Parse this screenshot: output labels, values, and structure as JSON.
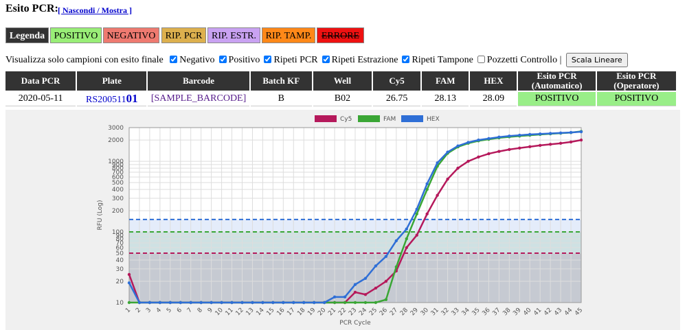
{
  "header": {
    "title": "Esito PCR:",
    "toggle": "[ Nascondi / Mostra ]"
  },
  "legend": {
    "title": "Legenda",
    "items": [
      "POSITIVO",
      "NEGATIVO",
      "RIP. PCR",
      "RIP. ESTR.",
      "RIP. TAMP.",
      "ERRORE"
    ]
  },
  "filters": {
    "label": "Visualizza solo campioni con esito finale",
    "options": [
      {
        "label": "Negativo",
        "checked": true
      },
      {
        "label": "Positivo",
        "checked": true
      },
      {
        "label": "Ripeti PCR",
        "checked": true
      },
      {
        "label": "Ripeti Estrazione",
        "checked": true
      },
      {
        "label": "Ripeti Tampone",
        "checked": true
      },
      {
        "label": "Pozzetti Controllo",
        "checked": false
      }
    ],
    "separator": "|",
    "button": "Scala Lineare"
  },
  "table": {
    "headers": [
      "Data PCR",
      "Plate",
      "Barcode",
      "Batch KF",
      "Well",
      "Cy5",
      "FAM",
      "HEX",
      "Esito PCR (Automatico)",
      "Esito PCR (Operatore)"
    ],
    "rows": [
      [
        "2020-05-11",
        {
          "prefix": "RS200511",
          "suffix": "01"
        },
        "[SAMPLE_BARCODE]",
        "B",
        "B02",
        26.75,
        28.13,
        28.09,
        "POSITIVO",
        "POSITIVO"
      ]
    ]
  },
  "chart_data": {
    "type": "line",
    "y_scale": "log",
    "grid": true,
    "legend": "top",
    "xlabel": "PCR Cycle",
    "ylabel": "RFU (Log)",
    "x": [
      1,
      2,
      3,
      4,
      5,
      6,
      7,
      8,
      9,
      10,
      11,
      12,
      13,
      14,
      15,
      16,
      17,
      18,
      19,
      20,
      21,
      22,
      23,
      24,
      25,
      26,
      27,
      28,
      29,
      30,
      31,
      32,
      33,
      34,
      35,
      36,
      37,
      38,
      39,
      40,
      41,
      42,
      43,
      44,
      45
    ],
    "xlim": [
      1,
      45
    ],
    "xticks": [
      1,
      2,
      3,
      4,
      5,
      6,
      7,
      8,
      9,
      10,
      11,
      12,
      13,
      14,
      15,
      16,
      17,
      18,
      19,
      20,
      21,
      22,
      23,
      24,
      25,
      26,
      27,
      28,
      29,
      30,
      31,
      32,
      33,
      34,
      35,
      36,
      37,
      38,
      39,
      40,
      41,
      42,
      43,
      44,
      45
    ],
    "ylim": [
      10,
      3000
    ],
    "yticks": [
      10,
      20,
      30,
      40,
      50,
      60,
      70,
      80,
      90,
      100,
      200,
      300,
      400,
      500,
      600,
      700,
      800,
      900,
      1000,
      2000,
      3000
    ],
    "series": [
      {
        "name": "Cy5",
        "color": "#b5195b",
        "threshold": 50,
        "values": [
          25,
          10,
          10,
          10,
          10,
          10,
          10,
          10,
          10,
          10,
          10,
          10,
          10,
          10,
          10,
          10,
          10,
          10,
          10,
          10,
          10,
          10,
          14,
          13,
          16,
          20,
          28,
          60,
          90,
          180,
          330,
          560,
          800,
          1000,
          1150,
          1280,
          1380,
          1470,
          1540,
          1610,
          1680,
          1740,
          1800,
          1880,
          2000
        ]
      },
      {
        "name": "FAM",
        "color": "#3aa635",
        "threshold": 100,
        "values": [
          10,
          10,
          10,
          10,
          10,
          10,
          10,
          10,
          10,
          10,
          10,
          10,
          10,
          10,
          10,
          10,
          10,
          10,
          10,
          10,
          10,
          10,
          10,
          10,
          10,
          11,
          32,
          80,
          180,
          400,
          850,
          1300,
          1600,
          1800,
          1950,
          2050,
          2150,
          2220,
          2280,
          2340,
          2400,
          2450,
          2500,
          2550,
          2650
        ]
      },
      {
        "name": "HEX",
        "color": "#2f6fd6",
        "threshold": 150,
        "values": [
          19,
          10,
          10,
          10,
          10,
          10,
          10,
          10,
          10,
          10,
          10,
          10,
          10,
          10,
          10,
          10,
          10,
          10,
          10,
          10,
          12,
          12,
          18,
          22,
          33,
          45,
          75,
          110,
          210,
          480,
          950,
          1350,
          1650,
          1850,
          2000,
          2100,
          2200,
          2280,
          2340,
          2400,
          2440,
          2480,
          2520,
          2560,
          2620
        ]
      }
    ]
  }
}
